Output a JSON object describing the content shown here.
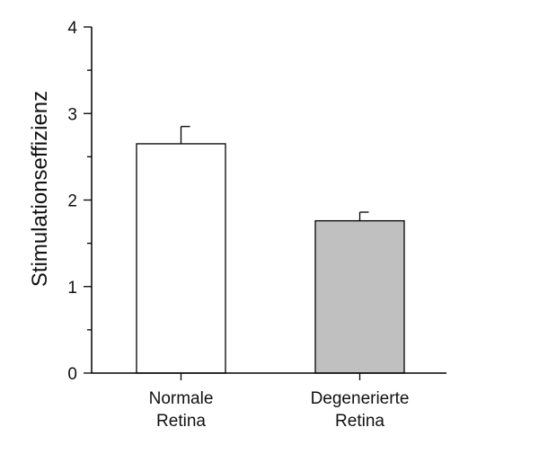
{
  "chart_data": {
    "type": "bar",
    "title": "",
    "xlabel": "",
    "ylabel": "Stimulationseffizienz",
    "ylim": [
      0,
      4
    ],
    "yticks": [
      0,
      1,
      2,
      3,
      4
    ],
    "yminor_step": 0.5,
    "grid": false,
    "legend": "none",
    "categories": [
      [
        "Normale",
        "Retina"
      ],
      [
        "Degenerierte",
        "Retina"
      ]
    ],
    "values": [
      2.65,
      1.76
    ],
    "errors": [
      0.2,
      0.1
    ],
    "bar_colors": [
      "#ffffff",
      "#c0c0c0"
    ]
  }
}
